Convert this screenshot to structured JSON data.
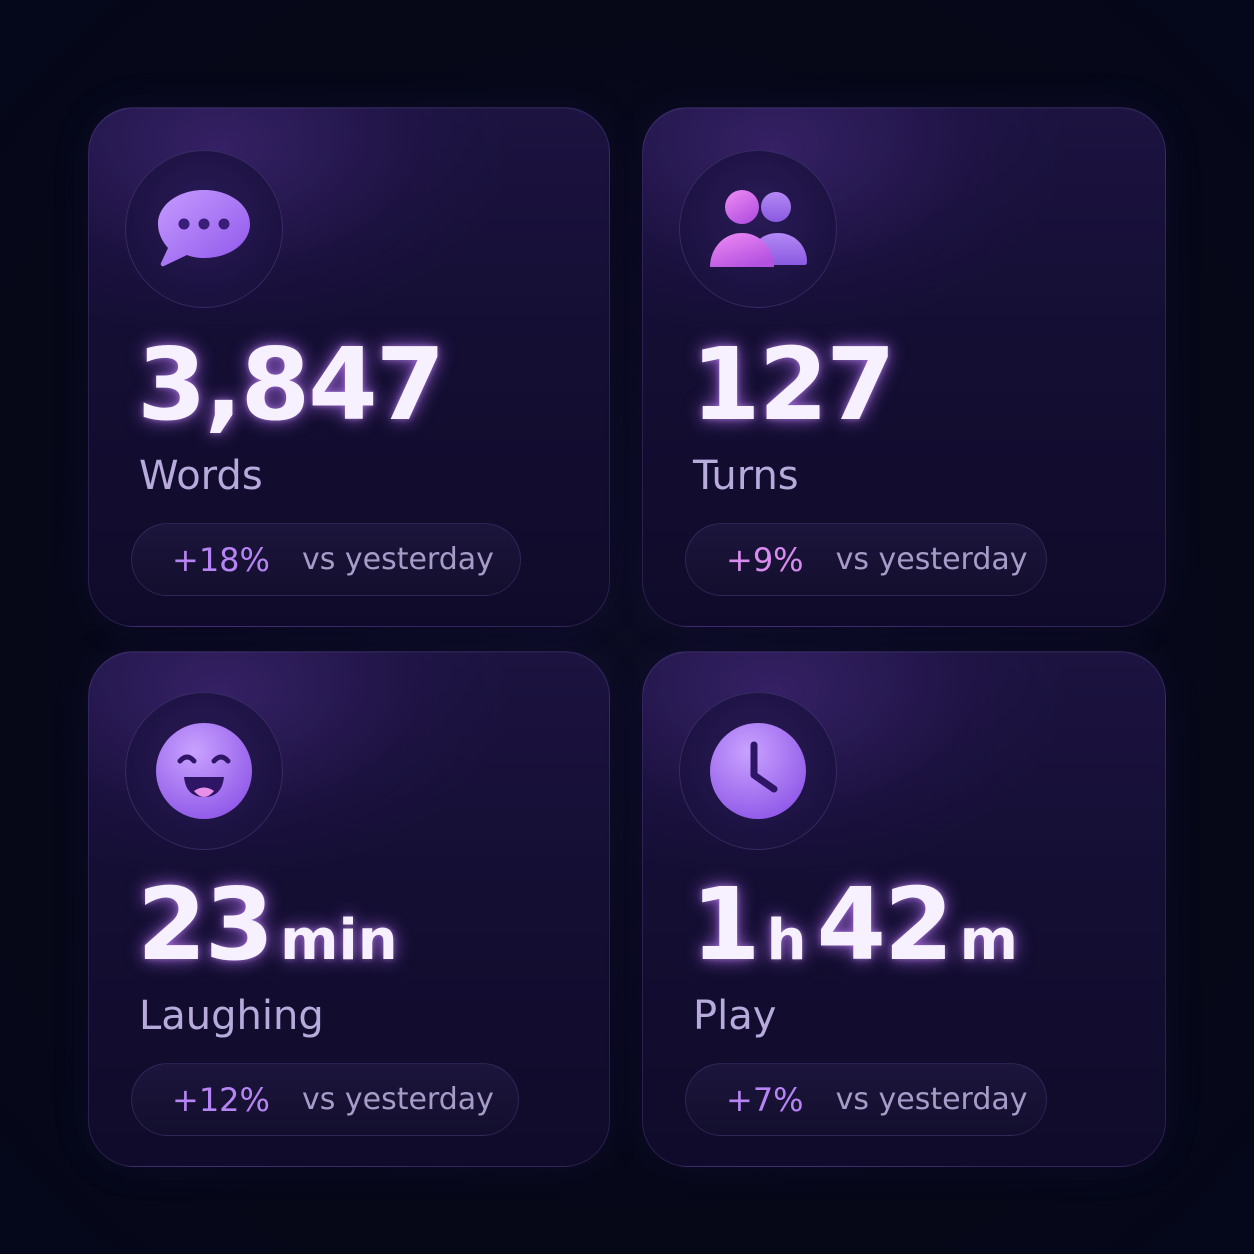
{
  "colors": {
    "background": "#07091a",
    "card": "#160f36",
    "accent_purple": "#a36bf0",
    "accent_pink": "#e06de8",
    "value_text": "#f6f0ff",
    "label_text": "#b7abdc"
  },
  "cards": [
    {
      "icon": "speech-bubble-icon",
      "value": "3,847",
      "label": "Words",
      "delta": "+18%",
      "comparison": "vs yesterday"
    },
    {
      "icon": "people-icon",
      "value": "127",
      "label": "Turns",
      "delta": "+9%",
      "comparison": "vs yesterday"
    },
    {
      "icon": "laughing-face-icon",
      "value": "23",
      "unit": "min",
      "label": "Laughing",
      "delta": "+12%",
      "comparison": "vs yesterday"
    },
    {
      "icon": "clock-icon",
      "value_hours": "1",
      "unit_hours": "h",
      "value_minutes": "42",
      "unit_minutes": "m",
      "label": "Play",
      "delta": "+7%",
      "comparison": "vs yesterday"
    }
  ]
}
